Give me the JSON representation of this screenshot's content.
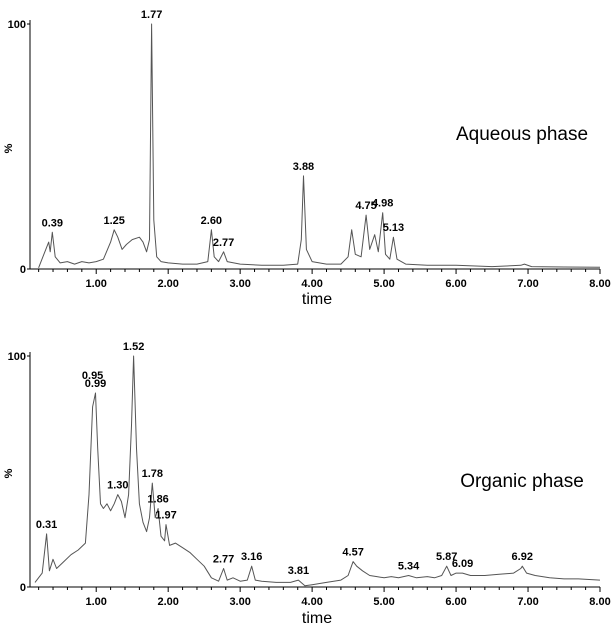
{
  "chart_data": [
    {
      "type": "line",
      "title": "Aqueous phase",
      "xlabel": "time",
      "ylabel": "%",
      "xlim": [
        0.08,
        8.0
      ],
      "ylim": [
        0,
        100
      ],
      "xticks": [
        "1.00",
        "2.00",
        "3.00",
        "4.00",
        "5.00",
        "6.00",
        "7.00",
        "8.00"
      ],
      "yticks": [
        "0",
        "100"
      ],
      "grid": false,
      "peaks": [
        {
          "label": "0.39",
          "x": 0.39,
          "y": 15
        },
        {
          "label": "1.25",
          "x": 1.25,
          "y": 16
        },
        {
          "label": "1.77",
          "x": 1.77,
          "y": 100
        },
        {
          "label": "2.60",
          "x": 2.6,
          "y": 16
        },
        {
          "label": "2.77",
          "x": 2.77,
          "y": 7
        },
        {
          "label": "3.88",
          "x": 3.88,
          "y": 38
        },
        {
          "label": "4.75",
          "x": 4.75,
          "y": 22
        },
        {
          "label": "4.98",
          "x": 4.98,
          "y": 23
        },
        {
          "label": "5.13",
          "x": 5.13,
          "y": 13
        }
      ],
      "trace": [
        [
          0.2,
          0.5
        ],
        [
          0.3,
          8
        ],
        [
          0.34,
          11
        ],
        [
          0.36,
          7
        ],
        [
          0.39,
          15
        ],
        [
          0.43,
          5
        ],
        [
          0.5,
          2.5
        ],
        [
          0.6,
          3
        ],
        [
          0.7,
          2
        ],
        [
          0.8,
          3
        ],
        [
          0.9,
          2.5
        ],
        [
          1.0,
          3
        ],
        [
          1.1,
          4
        ],
        [
          1.2,
          11
        ],
        [
          1.25,
          16
        ],
        [
          1.3,
          13
        ],
        [
          1.36,
          8
        ],
        [
          1.42,
          10
        ],
        [
          1.5,
          12
        ],
        [
          1.6,
          13
        ],
        [
          1.65,
          11
        ],
        [
          1.7,
          7
        ],
        [
          1.74,
          12
        ],
        [
          1.77,
          100
        ],
        [
          1.8,
          20
        ],
        [
          1.84,
          5
        ],
        [
          1.9,
          3
        ],
        [
          2.0,
          2.5
        ],
        [
          2.2,
          2
        ],
        [
          2.4,
          2
        ],
        [
          2.55,
          3
        ],
        [
          2.6,
          16
        ],
        [
          2.64,
          5
        ],
        [
          2.7,
          3
        ],
        [
          2.77,
          7
        ],
        [
          2.82,
          3
        ],
        [
          3.0,
          2
        ],
        [
          3.3,
          1.5
        ],
        [
          3.6,
          1.5
        ],
        [
          3.8,
          2
        ],
        [
          3.85,
          12
        ],
        [
          3.88,
          38
        ],
        [
          3.92,
          8
        ],
        [
          4.0,
          3
        ],
        [
          4.2,
          2
        ],
        [
          4.4,
          2
        ],
        [
          4.5,
          5
        ],
        [
          4.55,
          16
        ],
        [
          4.6,
          6
        ],
        [
          4.68,
          5
        ],
        [
          4.75,
          22
        ],
        [
          4.8,
          8
        ],
        [
          4.87,
          14
        ],
        [
          4.92,
          7
        ],
        [
          4.98,
          23
        ],
        [
          5.02,
          6
        ],
        [
          5.08,
          4
        ],
        [
          5.13,
          13
        ],
        [
          5.18,
          4
        ],
        [
          5.3,
          2
        ],
        [
          5.6,
          1.5
        ],
        [
          6.0,
          1.5
        ],
        [
          6.5,
          1
        ],
        [
          6.9,
          1.5
        ],
        [
          6.95,
          2
        ],
        [
          7.05,
          1
        ],
        [
          7.5,
          0.8
        ],
        [
          8.0,
          0.7
        ]
      ]
    },
    {
      "type": "line",
      "title": "Organic phase",
      "xlabel": "time",
      "ylabel": "%",
      "xlim": [
        0.08,
        8.0
      ],
      "ylim": [
        0,
        100
      ],
      "xticks": [
        "1.00",
        "2.00",
        "3.00",
        "4.00",
        "5.00",
        "6.00",
        "7.00",
        "8.00"
      ],
      "yticks": [
        "0",
        "100"
      ],
      "grid": false,
      "peaks": [
        {
          "label": "0.31",
          "x": 0.31,
          "y": 23
        },
        {
          "label": "0.95",
          "x": 0.95,
          "y": 78
        },
        {
          "label": "0.99",
          "x": 0.99,
          "y": 84
        },
        {
          "label": "1.30",
          "x": 1.3,
          "y": 40
        },
        {
          "label": "1.52",
          "x": 1.52,
          "y": 100
        },
        {
          "label": "1.78",
          "x": 1.78,
          "y": 45
        },
        {
          "label": "1.86",
          "x": 1.86,
          "y": 34
        },
        {
          "label": "1.97",
          "x": 1.97,
          "y": 27
        },
        {
          "label": "2.77",
          "x": 2.77,
          "y": 8
        },
        {
          "label": "3.16",
          "x": 3.16,
          "y": 9
        },
        {
          "label": "3.81",
          "x": 3.81,
          "y": 3
        },
        {
          "label": "4.57",
          "x": 4.57,
          "y": 11
        },
        {
          "label": "5.34",
          "x": 5.34,
          "y": 5
        },
        {
          "label": "5.87",
          "x": 5.87,
          "y": 9
        },
        {
          "label": "6.09",
          "x": 6.09,
          "y": 6
        },
        {
          "label": "6.92",
          "x": 6.92,
          "y": 9
        }
      ],
      "trace": [
        [
          0.15,
          2
        ],
        [
          0.25,
          6
        ],
        [
          0.31,
          23
        ],
        [
          0.35,
          7
        ],
        [
          0.4,
          12
        ],
        [
          0.45,
          8
        ],
        [
          0.55,
          11
        ],
        [
          0.65,
          14
        ],
        [
          0.75,
          16
        ],
        [
          0.85,
          19
        ],
        [
          0.9,
          40
        ],
        [
          0.95,
          78
        ],
        [
          0.99,
          84
        ],
        [
          1.02,
          60
        ],
        [
          1.06,
          36
        ],
        [
          1.1,
          34
        ],
        [
          1.15,
          36
        ],
        [
          1.2,
          33
        ],
        [
          1.25,
          36
        ],
        [
          1.3,
          40
        ],
        [
          1.35,
          37
        ],
        [
          1.4,
          30
        ],
        [
          1.45,
          40
        ],
        [
          1.49,
          70
        ],
        [
          1.52,
          100
        ],
        [
          1.56,
          60
        ],
        [
          1.6,
          36
        ],
        [
          1.65,
          28
        ],
        [
          1.7,
          24
        ],
        [
          1.74,
          30
        ],
        [
          1.78,
          45
        ],
        [
          1.82,
          30
        ],
        [
          1.86,
          34
        ],
        [
          1.9,
          22
        ],
        [
          1.95,
          20
        ],
        [
          1.97,
          27
        ],
        [
          2.02,
          18
        ],
        [
          2.1,
          19
        ],
        [
          2.2,
          17
        ],
        [
          2.3,
          15
        ],
        [
          2.4,
          12
        ],
        [
          2.5,
          9
        ],
        [
          2.6,
          4
        ],
        [
          2.7,
          2.5
        ],
        [
          2.77,
          8
        ],
        [
          2.82,
          3
        ],
        [
          2.9,
          4
        ],
        [
          3.0,
          2.5
        ],
        [
          3.1,
          3
        ],
        [
          3.16,
          9
        ],
        [
          3.21,
          3
        ],
        [
          3.3,
          2.5
        ],
        [
          3.5,
          2
        ],
        [
          3.7,
          2
        ],
        [
          3.81,
          3
        ],
        [
          3.9,
          0.5
        ],
        [
          4.0,
          1
        ],
        [
          4.2,
          2
        ],
        [
          4.4,
          3
        ],
        [
          4.5,
          5
        ],
        [
          4.57,
          11
        ],
        [
          4.62,
          9
        ],
        [
          4.7,
          7
        ],
        [
          4.8,
          5
        ],
        [
          4.9,
          4.5
        ],
        [
          5.0,
          4
        ],
        [
          5.1,
          4.5
        ],
        [
          5.2,
          4
        ],
        [
          5.34,
          5
        ],
        [
          5.45,
          4
        ],
        [
          5.6,
          4.5
        ],
        [
          5.7,
          4
        ],
        [
          5.8,
          5
        ],
        [
          5.87,
          9
        ],
        [
          5.93,
          5
        ],
        [
          6.0,
          6
        ],
        [
          6.09,
          6
        ],
        [
          6.2,
          5
        ],
        [
          6.4,
          5
        ],
        [
          6.6,
          5.5
        ],
        [
          6.8,
          6
        ],
        [
          6.9,
          8
        ],
        [
          6.92,
          9
        ],
        [
          6.98,
          6
        ],
        [
          7.1,
          5
        ],
        [
          7.3,
          4
        ],
        [
          7.5,
          3.5
        ],
        [
          7.7,
          3.5
        ],
        [
          8.0,
          3
        ]
      ]
    }
  ]
}
